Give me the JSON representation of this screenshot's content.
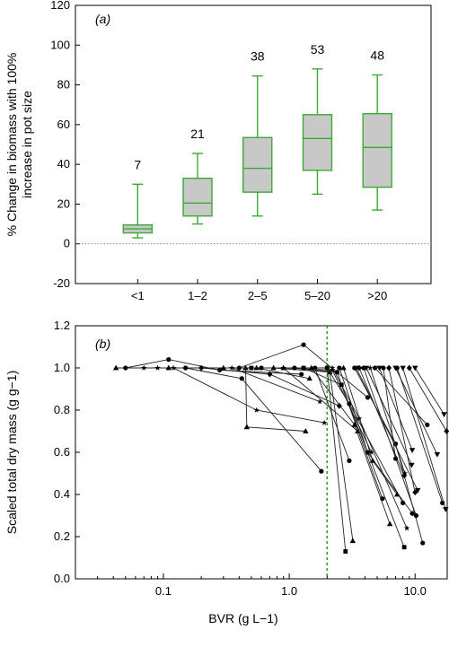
{
  "chart_data": [
    {
      "panel": "(a)",
      "type": "box",
      "ylabel_line1": "% Change in biomass with 100%",
      "ylabel_line2": "increase in pot size",
      "ylim": [
        -20,
        120
      ],
      "yticks": [
        -20,
        0,
        20,
        40,
        60,
        80,
        100,
        120
      ],
      "categories": [
        "<1",
        "1–2",
        "2–5",
        "5–20",
        ">20"
      ],
      "counts": [
        "7",
        "21",
        "38",
        "53",
        "48"
      ],
      "boxes": [
        {
          "category": "<1",
          "whisker_low": 3,
          "q1": 5.5,
          "median": 7.5,
          "q3": 9.5,
          "whisker_high": 30
        },
        {
          "category": "1–2",
          "whisker_low": 10,
          "q1": 14,
          "median": 20.5,
          "q3": 33,
          "whisker_high": 45.5
        },
        {
          "category": "2–5",
          "whisker_low": 14,
          "q1": 26,
          "median": 38,
          "q3": 53.5,
          "whisker_high": 84.5
        },
        {
          "category": "5–20",
          "whisker_low": 25,
          "q1": 37,
          "median": 53,
          "q3": 65,
          "whisker_high": 88
        },
        {
          "category": ">20",
          "whisker_low": 17,
          "q1": 28.5,
          "median": 48.5,
          "q3": 65.5,
          "whisker_high": 85
        }
      ],
      "reference_line_y": 0,
      "box_fill": "#c8c8c8",
      "box_stroke": "#3aaa35"
    },
    {
      "panel": "(b)",
      "type": "line",
      "xlabel": "BVR (g L−1)",
      "ylabel": "Scaled total dry mass (g g−1)",
      "xscale": "log",
      "xlim": [
        0.02,
        18
      ],
      "ylim": [
        0,
        1.2
      ],
      "xticks": [
        {
          "value": 0.1,
          "label": "0.1"
        },
        {
          "value": 1,
          "label": "1.0"
        },
        {
          "value": 10,
          "label": "10.0"
        }
      ],
      "yticks": [
        {
          "value": 0,
          "label": "0.0"
        },
        {
          "value": 0.2,
          "label": "0.2"
        },
        {
          "value": 0.4,
          "label": "0.4"
        },
        {
          "value": 0.6,
          "label": "0.6"
        },
        {
          "value": 0.8,
          "label": "0.8"
        },
        {
          "value": 1.0,
          "label": "1.0"
        },
        {
          "value": 1.2,
          "label": "1.2"
        }
      ],
      "reference_line_x": 2,
      "reference_color": "#22aa22",
      "series": [
        {
          "marker": "triangle-up",
          "x": [
            0.042,
            0.45,
            0.46,
            1.35
          ],
          "y": [
            1.0,
            1.0,
            0.72,
            0.7
          ]
        },
        {
          "marker": "circle",
          "x": [
            0.05,
            0.11,
            0.28,
            1.25
          ],
          "y": [
            1.0,
            1.04,
            0.99,
            0.97
          ]
        },
        {
          "marker": "star",
          "x": [
            0.07,
            0.12,
            0.55,
            1.9
          ],
          "y": [
            1.0,
            1.0,
            0.8,
            0.74
          ]
        },
        {
          "marker": "star",
          "x": [
            0.09,
            0.35,
            1.75
          ],
          "y": [
            1.0,
            1.0,
            0.84
          ]
        },
        {
          "marker": "triangle-up",
          "x": [
            0.11,
            0.55,
            1.45
          ],
          "y": [
            1.0,
            1.0,
            0.95
          ]
        },
        {
          "marker": "circle",
          "x": [
            0.15,
            0.42,
            1.8
          ],
          "y": [
            1.0,
            0.95,
            0.51
          ]
        },
        {
          "marker": "diamond",
          "x": [
            0.2,
            0.7,
            2.5
          ],
          "y": [
            1.0,
            0.97,
            0.82
          ]
        },
        {
          "marker": "triangle-up",
          "x": [
            0.3,
            0.9,
            3.5
          ],
          "y": [
            1.0,
            1.0,
            0.7
          ]
        },
        {
          "marker": "circle",
          "x": [
            0.4,
            1.3,
            4.2
          ],
          "y": [
            1.0,
            1.11,
            0.86
          ]
        },
        {
          "marker": "square",
          "x": [
            0.5,
            2.0,
            2.8
          ],
          "y": [
            1.0,
            1.0,
            0.13
          ]
        },
        {
          "marker": "circle",
          "x": [
            0.6,
            1.6,
            3.0
          ],
          "y": [
            1.0,
            1.0,
            0.56
          ]
        },
        {
          "marker": "triangle-up",
          "x": [
            0.75,
            2.1,
            3.2
          ],
          "y": [
            1.0,
            0.98,
            0.18
          ]
        },
        {
          "marker": "star",
          "x": [
            0.9,
            2.2,
            4.5
          ],
          "y": [
            1.0,
            0.99,
            0.6
          ]
        },
        {
          "marker": "circle",
          "x": [
            1.1,
            2.4,
            5.5
          ],
          "y": [
            1.0,
            0.98,
            0.38
          ]
        },
        {
          "marker": "square",
          "x": [
            1.3,
            2.6,
            8.2
          ],
          "y": [
            1.0,
            0.92,
            0.15
          ]
        },
        {
          "marker": "triangle-up",
          "x": [
            1.5,
            3.3,
            6.3
          ],
          "y": [
            1.0,
            0.73,
            0.26
          ]
        },
        {
          "marker": "circle",
          "x": [
            2.0,
            3.0,
            8.0
          ],
          "y": [
            1.0,
            0.83,
            0.36
          ]
        },
        {
          "marker": "star",
          "x": [
            2.2,
            3.6,
            8.6
          ],
          "y": [
            1.0,
            0.76,
            0.24
          ]
        },
        {
          "marker": "circle",
          "x": [
            2.5,
            4.2,
            9.5
          ],
          "y": [
            1.0,
            0.6,
            0.31
          ]
        },
        {
          "marker": "triangle-up",
          "x": [
            2.7,
            4.6,
            7.2
          ],
          "y": [
            1.0,
            0.56,
            0.4
          ]
        },
        {
          "marker": "circle",
          "x": [
            3.3,
            7.0,
            11.5
          ],
          "y": [
            1.0,
            0.64,
            0.17
          ]
        },
        {
          "marker": "triangle-down",
          "x": [
            3.4,
            10.5
          ],
          "y": [
            1.0,
            0.42
          ]
        },
        {
          "marker": "diamond",
          "x": [
            3.6,
            8.2
          ],
          "y": [
            1.0,
            0.49
          ]
        },
        {
          "marker": "circle",
          "x": [
            3.9,
            10.2
          ],
          "y": [
            1.0,
            0.3
          ]
        },
        {
          "marker": "triangle-down",
          "x": [
            4.1,
            9.4
          ],
          "y": [
            1.0,
            0.54
          ]
        },
        {
          "marker": "star",
          "x": [
            4.4,
            8.3
          ],
          "y": [
            1.0,
            0.5
          ]
        },
        {
          "marker": "circle",
          "x": [
            4.8,
            12.5
          ],
          "y": [
            1.0,
            0.73
          ]
        },
        {
          "marker": "triangle-down",
          "x": [
            5.2,
            9.5
          ],
          "y": [
            1.0,
            0.61
          ]
        },
        {
          "marker": "circle",
          "x": [
            5.6,
            7.0
          ],
          "y": [
            1.0,
            0.57
          ]
        },
        {
          "marker": "diamond",
          "x": [
            6.2,
            10.0
          ],
          "y": [
            1.0,
            0.41
          ]
        },
        {
          "marker": "triangle-down",
          "x": [
            7.0,
            15.0
          ],
          "y": [
            1.0,
            0.59
          ]
        },
        {
          "marker": "circle",
          "x": [
            7.2,
            16.5
          ],
          "y": [
            1.0,
            0.36
          ]
        },
        {
          "marker": "triangle-down",
          "x": [
            8.0,
            17.5
          ],
          "y": [
            1.0,
            0.33
          ]
        },
        {
          "marker": "diamond",
          "x": [
            9.0,
            17.8
          ],
          "y": [
            1.0,
            0.7
          ]
        },
        {
          "marker": "triangle-down",
          "x": [
            10.0,
            17.0
          ],
          "y": [
            1.0,
            0.78
          ]
        }
      ]
    }
  ]
}
